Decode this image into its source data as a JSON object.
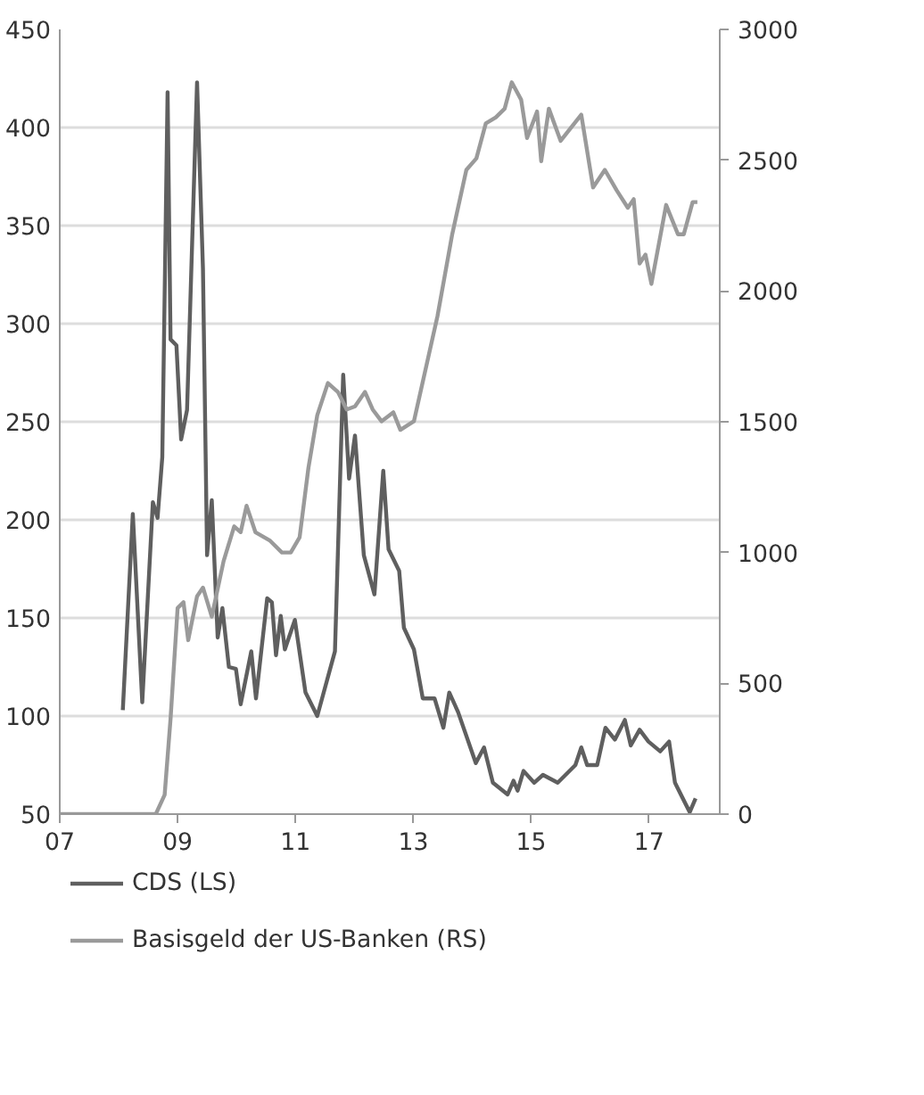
{
  "chart_data": {
    "type": "line",
    "xlim": [
      2007,
      2018.2
    ],
    "xticks": [
      {
        "value": 2007,
        "label": "07"
      },
      {
        "value": 2009,
        "label": "09"
      },
      {
        "value": 2011,
        "label": "11"
      },
      {
        "value": 2013,
        "label": "13"
      },
      {
        "value": 2015,
        "label": "15"
      },
      {
        "value": 2017,
        "label": "17"
      }
    ],
    "ylim": [
      50,
      450
    ],
    "yticks": [
      50,
      100,
      150,
      200,
      250,
      300,
      350,
      400,
      450
    ],
    "y2lim": [
      0,
      3000
    ],
    "y2ticks": [
      0,
      500,
      1000,
      1500,
      2000,
      2500,
      3000
    ],
    "grid": "y",
    "legend": "bottom",
    "series": [
      {
        "name": "CDS (LS)",
        "color": "#5f5f5f",
        "x": [
          2008.07,
          2008.24,
          2008.4,
          2008.58,
          2008.66,
          2008.74,
          2008.83,
          2008.88,
          2008.98,
          2009.06,
          2009.16,
          2009.33,
          2009.43,
          2009.5,
          2009.58,
          2009.68,
          2009.76,
          2009.87,
          2009.99,
          2010.07,
          2010.25,
          2010.33,
          2010.52,
          2010.6,
          2010.67,
          2010.75,
          2010.82,
          2010.99,
          2011.17,
          2011.37,
          2011.67,
          2011.81,
          2011.91,
          2012.01,
          2012.16,
          2012.34,
          2012.49,
          2012.58,
          2012.76,
          2012.84,
          2013.01,
          2013.16,
          2013.36,
          2013.51,
          2013.61,
          2013.76,
          2014.06,
          2014.2,
          2014.35,
          2014.6,
          2014.7,
          2014.77,
          2014.87,
          2015.05,
          2015.2,
          2015.45,
          2015.75,
          2015.85,
          2015.95,
          2016.12,
          2016.26,
          2016.42,
          2016.59,
          2016.69,
          2016.84,
          2016.99,
          2017.19,
          2017.34,
          2017.44,
          2017.69,
          2017.79
        ],
        "values": [
          103,
          203,
          107,
          209,
          201,
          232,
          418,
          292,
          289,
          241,
          256,
          423,
          328,
          182,
          210,
          140,
          155,
          125,
          124,
          106,
          133,
          109,
          160,
          158,
          131,
          151,
          134,
          149,
          112,
          100,
          133,
          274,
          221,
          243,
          182,
          162,
          225,
          185,
          174,
          145,
          134,
          109,
          109,
          94,
          112,
          102,
          76,
          84,
          66,
          60,
          67,
          62,
          72,
          66,
          70,
          66,
          75,
          84,
          75,
          75,
          94,
          88,
          98,
          85,
          93,
          87,
          82,
          87,
          66,
          51,
          58
        ]
      },
      {
        "name": "Basisgeld der US-Banken (RS)",
        "color": "#9a9a9a",
        "axis": "y2",
        "x": [
          2007,
          2008.63,
          2008.78,
          2008.88,
          2009.0,
          2009.1,
          2009.18,
          2009.33,
          2009.43,
          2009.58,
          2009.78,
          2009.96,
          2010.07,
          2010.17,
          2010.32,
          2010.57,
          2010.77,
          2010.92,
          2011.07,
          2011.22,
          2011.37,
          2011.55,
          2011.72,
          2011.87,
          2012.01,
          2012.18,
          2012.31,
          2012.46,
          2012.66,
          2012.78,
          2013.01,
          2013.21,
          2013.41,
          2013.66,
          2013.9,
          2014.07,
          2014.23,
          2014.4,
          2014.55,
          2014.67,
          2014.83,
          2014.93,
          2015.1,
          2015.17,
          2015.3,
          2015.5,
          2015.85,
          2016.05,
          2016.25,
          2016.45,
          2016.64,
          2016.74,
          2016.84,
          2016.94,
          2017.04,
          2017.29,
          2017.49,
          2017.59,
          2017.74,
          2017.82
        ],
        "values": [
          0,
          0,
          74,
          364,
          788,
          810,
          665,
          833,
          866,
          755,
          967,
          1100,
          1078,
          1179,
          1078,
          1045,
          1000,
          1000,
          1058,
          1324,
          1525,
          1648,
          1614,
          1547,
          1559,
          1614,
          1547,
          1502,
          1536,
          1469,
          1502,
          1703,
          1904,
          2217,
          2463,
          2507,
          2641,
          2664,
          2697,
          2798,
          2731,
          2585,
          2686,
          2496,
          2697,
          2574,
          2674,
          2396,
          2463,
          2385,
          2318,
          2351,
          2105,
          2139,
          2027,
          2329,
          2217,
          2217,
          2340,
          2340
        ]
      }
    ]
  }
}
